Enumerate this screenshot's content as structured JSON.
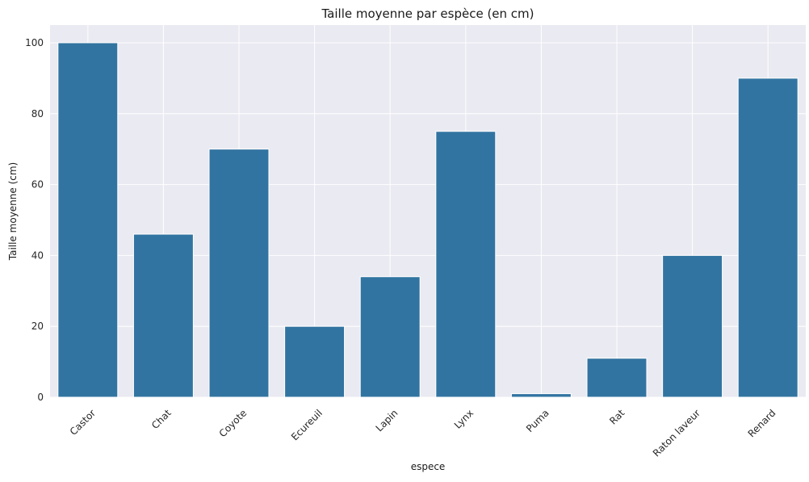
{
  "chart_data": {
    "type": "bar",
    "title": "Taille moyenne par espèce (en cm)",
    "xlabel": "espece",
    "ylabel": "Taille moyenne (cm)",
    "categories": [
      "Castor",
      "Chat",
      "Coyote",
      "Ecureuil",
      "Lapin",
      "Lynx",
      "Puma",
      "Rat",
      "Raton laveur",
      "Renard"
    ],
    "values": [
      100,
      46,
      70,
      20,
      34,
      75,
      1,
      11,
      40,
      90
    ],
    "ylim": [
      0,
      105
    ],
    "yticks": [
      "0",
      "20",
      "40",
      "60",
      "80",
      "100"
    ],
    "grid": true,
    "bar_color": "#3274a1",
    "background_color": "#eaeaf2",
    "grid_color": "#ffffff"
  }
}
